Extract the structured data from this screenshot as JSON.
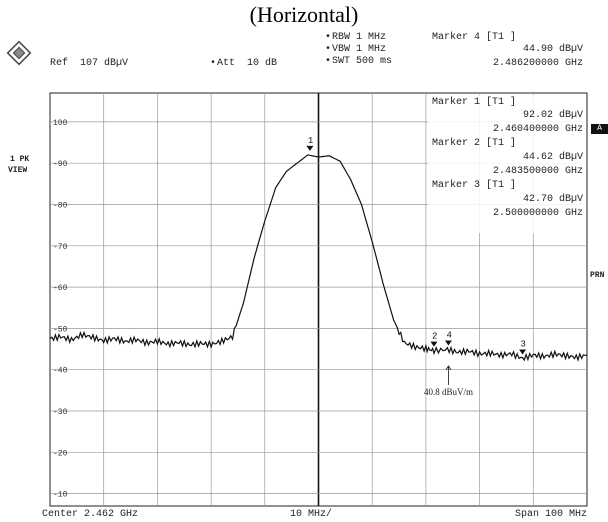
{
  "title": "(Horizontal)",
  "header": {
    "rbw": "RBW 1 MHz",
    "vbw": "VBW 1 MHz",
    "swt": "SWT 500 ms",
    "ref": "Ref  107 dBµV",
    "att": "Att  10 dB",
    "active_marker": {
      "title": "Marker 4 [T1 ]",
      "level": "44.90 dBµV",
      "freq": "2.486200000 GHz"
    }
  },
  "side": {
    "trace_mode_1": "1 PK",
    "trace_mode_2": "VIEW",
    "a_badge": "A",
    "prn": "PRN"
  },
  "markers": [
    {
      "label": "1",
      "title": "Marker 1 [T1 ]",
      "level": "92.02 dBµV",
      "freq": "2.460400000 GHz"
    },
    {
      "label": "2",
      "title": "Marker 2 [T1 ]",
      "level": "44.62 dBµV",
      "freq": "2.483500000 GHz"
    },
    {
      "label": "3",
      "title": "Marker 3 [T1 ]",
      "level": "42.70 dBµV",
      "freq": "2.500000000 GHz"
    }
  ],
  "annotation": "40.8 dBuV/m",
  "footer": {
    "center": "Center 2.462 GHz",
    "div": "10 MHz/",
    "span": "Span 100 MHz"
  },
  "chart_data": {
    "type": "line",
    "xlabel": "",
    "ylabel": "",
    "xlim": [
      2.412,
      2.512
    ],
    "ylim": [
      7,
      107
    ],
    "y_ticks": [
      100,
      90,
      80,
      70,
      60,
      50,
      40,
      30,
      20,
      10
    ],
    "grid": true,
    "series": [
      {
        "x": [
          2.412,
          2.414,
          2.416,
          2.418,
          2.42,
          2.422,
          2.424,
          2.426,
          2.428,
          2.43,
          2.432,
          2.434,
          2.436,
          2.438,
          2.44,
          2.442,
          2.444,
          2.446,
          2.448,
          2.45,
          2.452,
          2.454,
          2.456,
          2.458,
          2.46,
          2.462,
          2.464,
          2.466,
          2.468,
          2.47,
          2.472,
          2.474,
          2.476,
          2.478,
          2.48,
          2.482,
          2.4835,
          2.486,
          2.488,
          2.49,
          2.492,
          2.494,
          2.496,
          2.498,
          2.5,
          2.502,
          2.504,
          2.506,
          2.508,
          2.51,
          2.512
        ],
        "y": [
          47.5,
          48,
          47.2,
          48.5,
          47.8,
          47,
          47.6,
          46.8,
          47.3,
          46.5,
          46.9,
          46.2,
          46.6,
          46,
          46.4,
          46.1,
          46.9,
          48,
          56,
          67,
          76,
          84,
          88,
          90,
          92,
          91.5,
          91.8,
          90.5,
          86,
          80,
          71,
          61,
          52,
          46.5,
          45.5,
          45.1,
          44.6,
          44.9,
          44.2,
          44.5,
          43.8,
          44,
          43.5,
          43.9,
          42.7,
          43.6,
          43.2,
          43.8,
          43.4,
          43,
          43.5
        ]
      }
    ]
  }
}
